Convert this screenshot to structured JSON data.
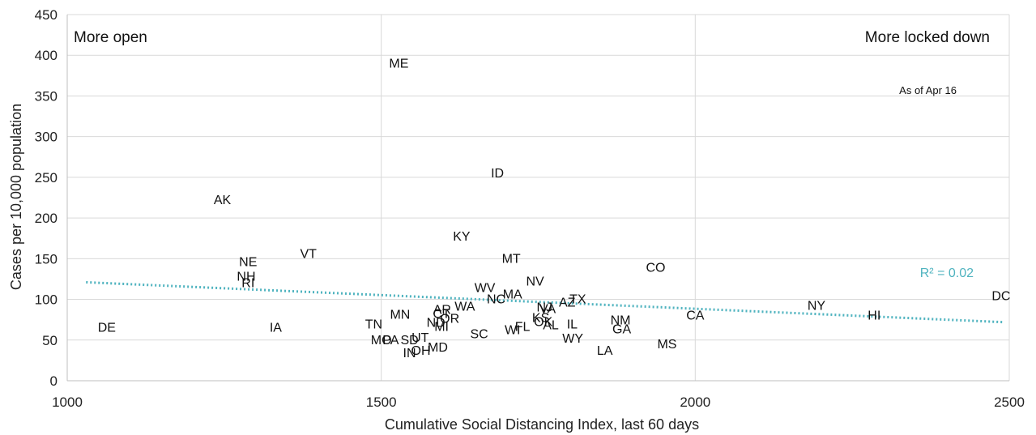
{
  "chart_data": {
    "type": "scatter",
    "xlabel": "Cumulative Social Distancing Index, last 60 days",
    "ylabel": "Cases per 10,000 population",
    "xlim": [
      1000,
      2500
    ],
    "ylim": [
      0,
      450
    ],
    "x_ticks": [
      "1000",
      "1500",
      "2000",
      "2500"
    ],
    "y_ticks": [
      "0",
      "50",
      "100",
      "150",
      "200",
      "250",
      "300",
      "350",
      "400",
      "450"
    ],
    "grid": true,
    "annotations": {
      "left": "More open",
      "right": "More locked down",
      "date": "As of Apr 16",
      "r_squared": "R² = 0.02"
    },
    "trendline": {
      "x": [
        1030,
        2490
      ],
      "y": [
        121,
        72
      ],
      "color": "#4fb3bf"
    },
    "points": [
      {
        "label": "ME",
        "x": 1528,
        "y": 391
      },
      {
        "label": "ID",
        "x": 1685,
        "y": 256
      },
      {
        "label": "AK",
        "x": 1247,
        "y": 223
      },
      {
        "label": "KY",
        "x": 1628,
        "y": 178
      },
      {
        "label": "VT",
        "x": 1384,
        "y": 157
      },
      {
        "label": "MT",
        "x": 1707,
        "y": 151
      },
      {
        "label": "NE",
        "x": 1288,
        "y": 147
      },
      {
        "label": "CO",
        "x": 1937,
        "y": 140
      },
      {
        "label": "NH",
        "x": 1285,
        "y": 129
      },
      {
        "label": "RI",
        "x": 1288,
        "y": 121
      },
      {
        "label": "NV",
        "x": 1745,
        "y": 123
      },
      {
        "label": "WV",
        "x": 1665,
        "y": 115
      },
      {
        "label": "MA",
        "x": 1709,
        "y": 107
      },
      {
        "label": "NC",
        "x": 1683,
        "y": 101
      },
      {
        "label": "TX",
        "x": 1813,
        "y": 101
      },
      {
        "label": "AZ",
        "x": 1796,
        "y": 97
      },
      {
        "label": "DC",
        "x": 2487,
        "y": 105
      },
      {
        "label": "NY",
        "x": 2193,
        "y": 93
      },
      {
        "label": "NJ",
        "x": 1760,
        "y": 91
      },
      {
        "label": "VA",
        "x": 1765,
        "y": 89
      },
      {
        "label": "WA",
        "x": 1633,
        "y": 92
      },
      {
        "label": "AR",
        "x": 1597,
        "y": 88
      },
      {
        "label": "CT",
        "x": 1596,
        "y": 83
      },
      {
        "label": "MN",
        "x": 1530,
        "y": 82
      },
      {
        "label": "HI",
        "x": 2285,
        "y": 81
      },
      {
        "label": "CA",
        "x": 2000,
        "y": 81
      },
      {
        "label": "KS",
        "x": 1754,
        "y": 78
      },
      {
        "label": "OR",
        "x": 1609,
        "y": 77
      },
      {
        "label": "NM",
        "x": 1881,
        "y": 75
      },
      {
        "label": "OK",
        "x": 1758,
        "y": 73
      },
      {
        "label": "ND",
        "x": 1587,
        "y": 72
      },
      {
        "label": "TN",
        "x": 1488,
        "y": 70
      },
      {
        "label": "IL",
        "x": 1804,
        "y": 70
      },
      {
        "label": "AL",
        "x": 1770,
        "y": 69
      },
      {
        "label": "FL",
        "x": 1725,
        "y": 67
      },
      {
        "label": "GA",
        "x": 1883,
        "y": 64
      },
      {
        "label": "IA",
        "x": 1332,
        "y": 66
      },
      {
        "label": "DE",
        "x": 1063,
        "y": 66
      },
      {
        "label": "MI",
        "x": 1596,
        "y": 67
      },
      {
        "label": "WI",
        "x": 1709,
        "y": 63
      },
      {
        "label": "SC",
        "x": 1656,
        "y": 58
      },
      {
        "label": "WY",
        "x": 1805,
        "y": 53
      },
      {
        "label": "SD",
        "x": 1545,
        "y": 51
      },
      {
        "label": "MO",
        "x": 1500,
        "y": 51
      },
      {
        "label": "PA",
        "x": 1515,
        "y": 51
      },
      {
        "label": "UT",
        "x": 1562,
        "y": 54
      },
      {
        "label": "MS",
        "x": 1955,
        "y": 46
      },
      {
        "label": "MD",
        "x": 1590,
        "y": 42
      },
      {
        "label": "OH",
        "x": 1563,
        "y": 38
      },
      {
        "label": "LA",
        "x": 1856,
        "y": 38
      },
      {
        "label": "IN",
        "x": 1545,
        "y": 35
      }
    ]
  }
}
